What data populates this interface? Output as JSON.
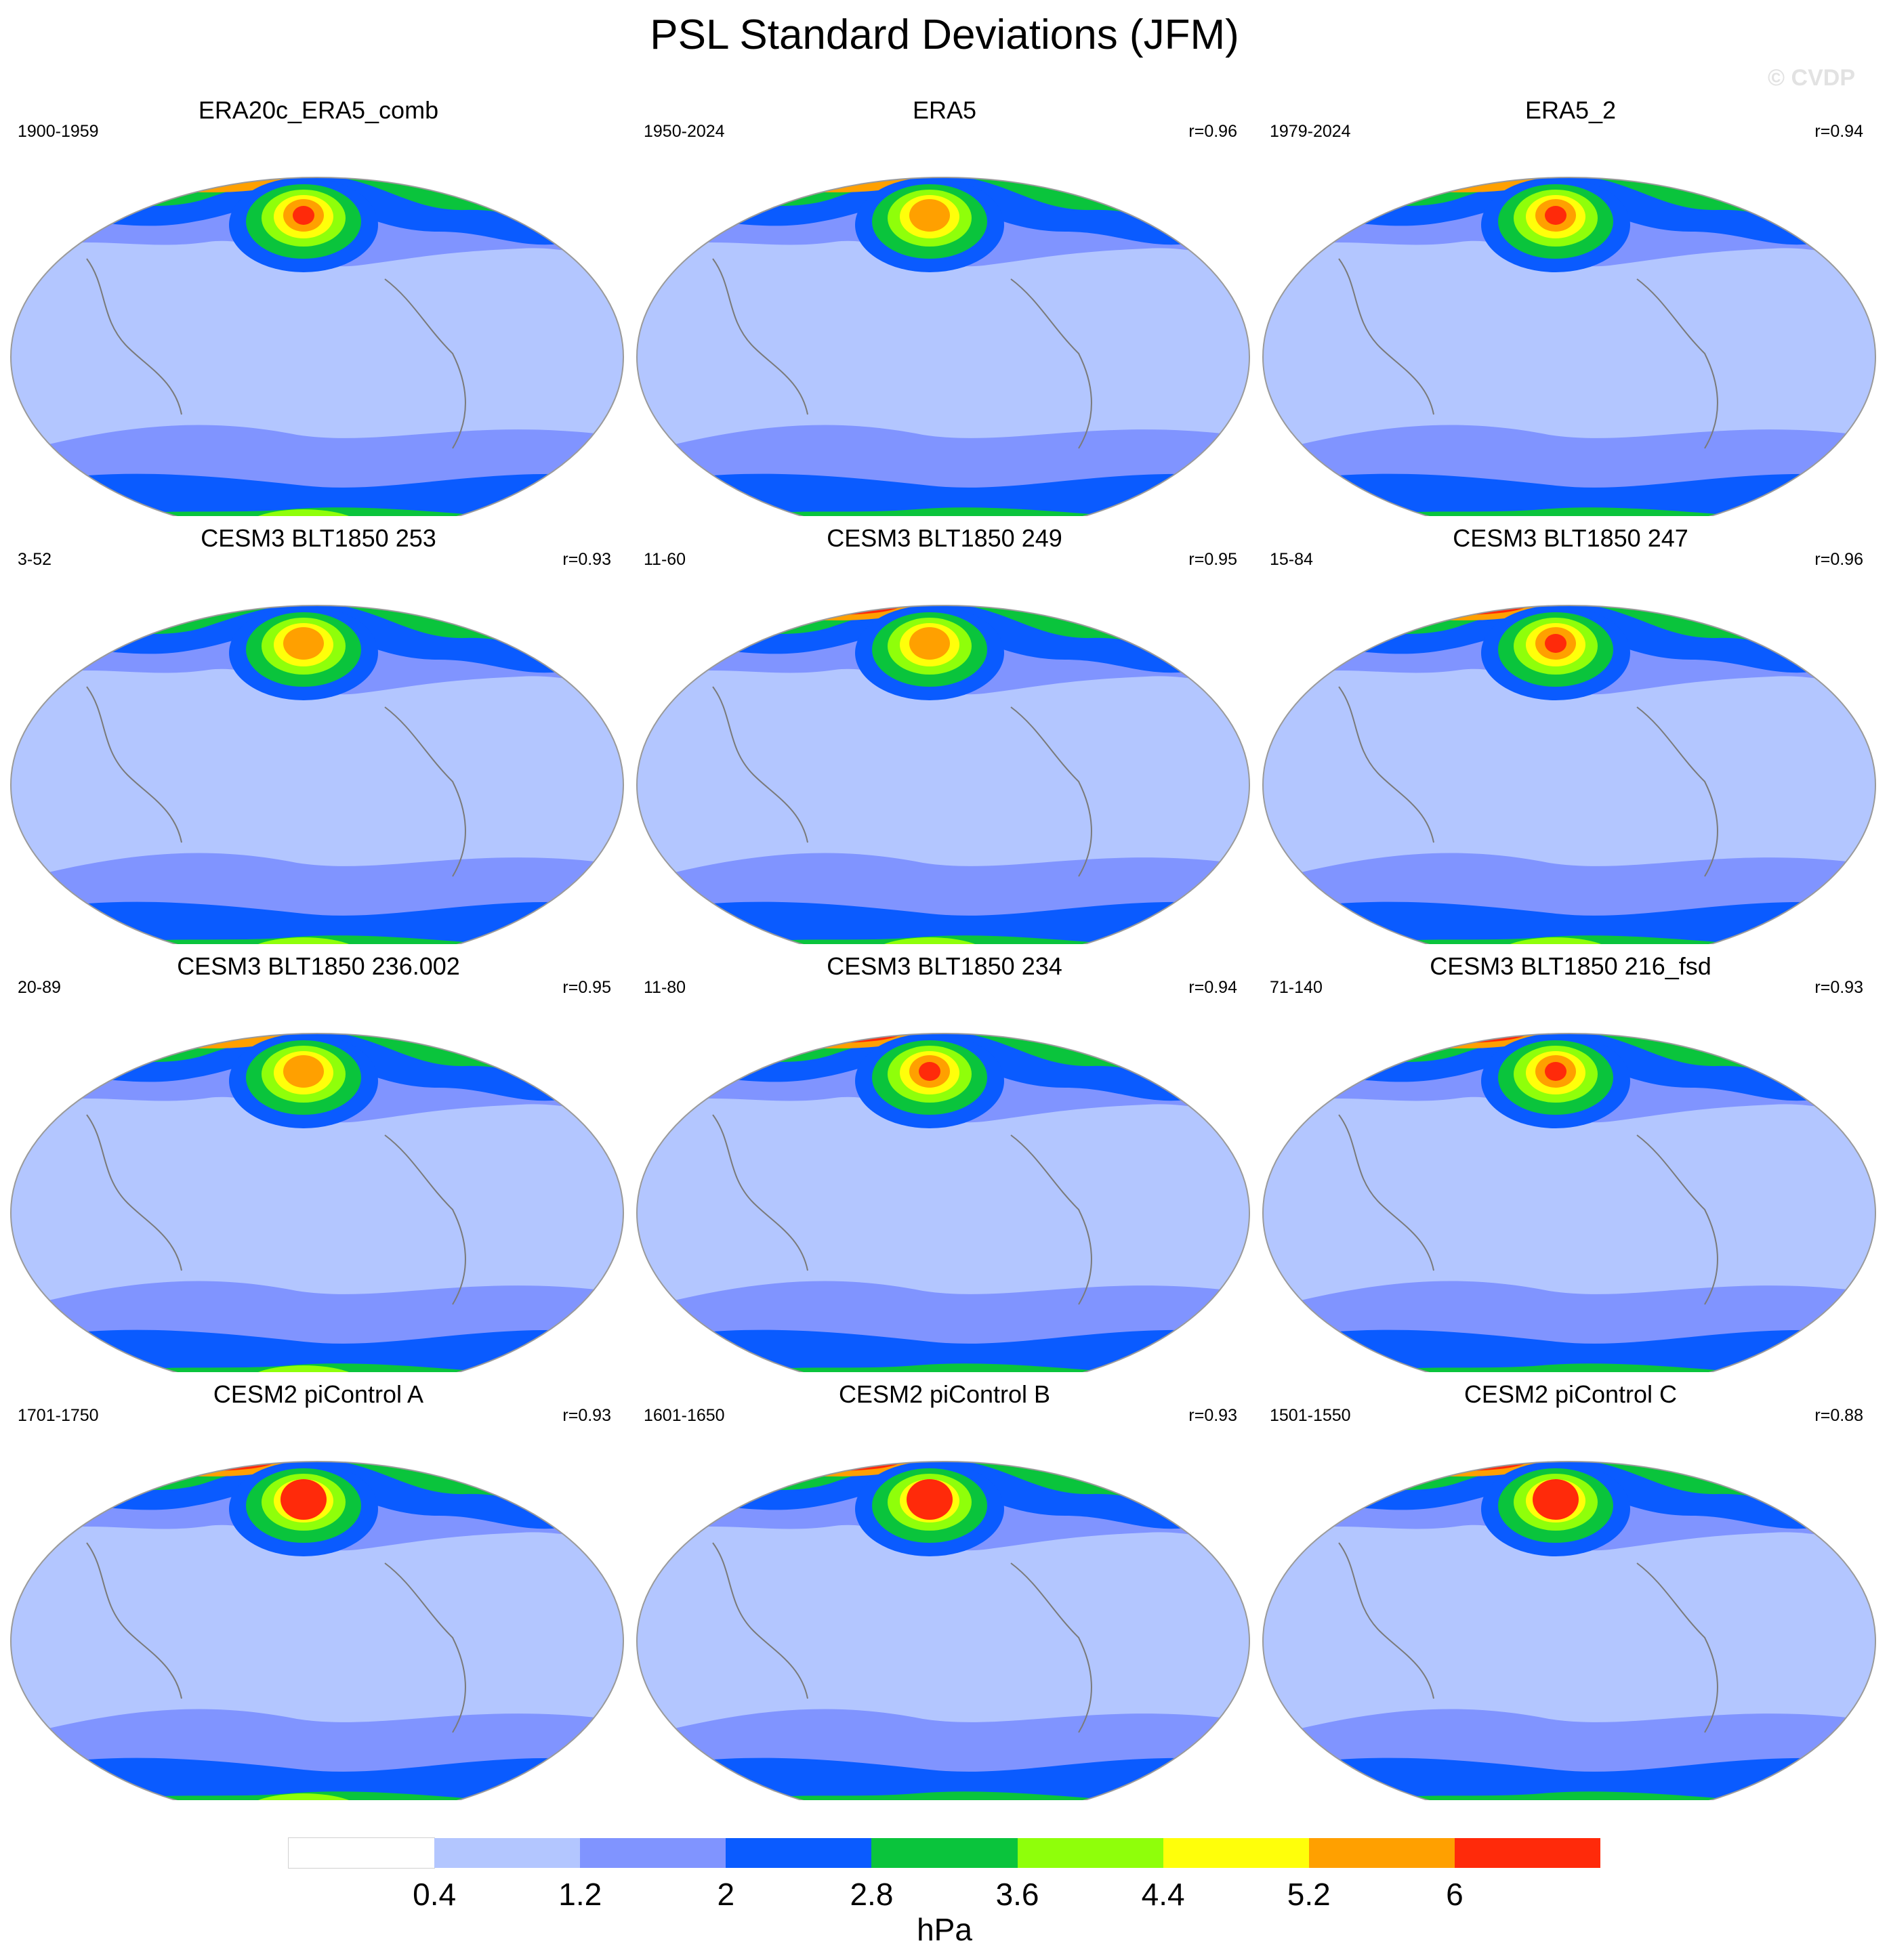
{
  "title": "PSL Standard Deviations (JFM)",
  "watermark": "© CVDP",
  "legend": {
    "unit": "hPa",
    "ticks": [
      "0.4",
      "1.2",
      "2",
      "2.8",
      "3.6",
      "4.4",
      "5.2",
      "6"
    ],
    "colors": [
      "#ffffff",
      "#b3c6ff",
      "#8094ff",
      "#0a5bff",
      "#0ac43c",
      "#8fff0a",
      "#ffff0a",
      "#ffa000",
      "#ff2a0a"
    ]
  },
  "panels": [
    {
      "title": "ERA20c_ERA5_comb",
      "range": "1900-1959",
      "corr": ""
    },
    {
      "title": "ERA5",
      "range": "1950-2024",
      "corr": "r=0.96"
    },
    {
      "title": "ERA5_2",
      "range": "1979-2024",
      "corr": "r=0.94"
    },
    {
      "title": "CESM3 BLT1850 253",
      "range": "3-52",
      "corr": "r=0.93"
    },
    {
      "title": "CESM3 BLT1850 249",
      "range": "11-60",
      "corr": "r=0.95"
    },
    {
      "title": "CESM3 BLT1850 247",
      "range": "15-84",
      "corr": "r=0.96"
    },
    {
      "title": "CESM3 BLT1850 236.002",
      "range": "20-89",
      "corr": "r=0.95"
    },
    {
      "title": "CESM3 BLT1850 234",
      "range": "11-80",
      "corr": "r=0.94"
    },
    {
      "title": "CESM3 BLT1850 216_fsd",
      "range": "71-140",
      "corr": "r=0.93"
    },
    {
      "title": "CESM2 piControl A",
      "range": "1701-1750",
      "corr": "r=0.93"
    },
    {
      "title": "CESM2 piControl B",
      "range": "1601-1650",
      "corr": "r=0.93"
    },
    {
      "title": "CESM2 piControl C",
      "range": "1501-1550",
      "corr": "r=0.88"
    }
  ]
}
